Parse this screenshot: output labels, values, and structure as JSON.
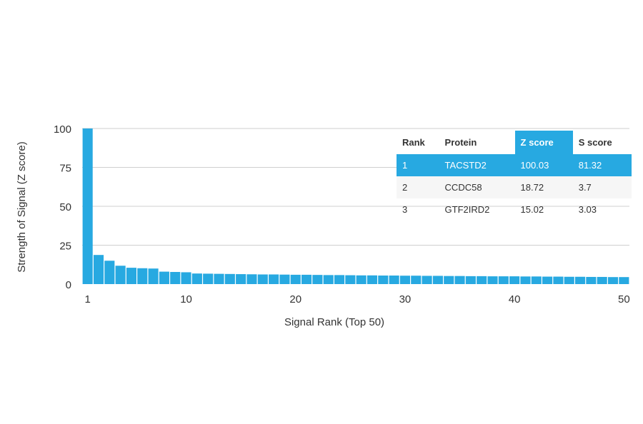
{
  "chart_data": {
    "type": "bar",
    "xlabel": "Signal Rank (Top 50)",
    "ylabel": "Strength of Signal (Z score)",
    "ylim": [
      0,
      100
    ],
    "yticks": [
      0,
      25,
      50,
      75,
      100
    ],
    "xticks": [
      1,
      10,
      20,
      30,
      40,
      50
    ],
    "grid": true,
    "bar_color": "#27a9e1",
    "values": [
      100.03,
      18.72,
      15.02,
      11.8,
      10.5,
      10.2,
      10,
      8,
      7.8,
      7.6,
      6.8,
      6.7,
      6.6,
      6.5,
      6.4,
      6.3,
      6.2,
      6.2,
      6.1,
      6.0,
      6.0,
      5.9,
      5.8,
      5.8,
      5.7,
      5.6,
      5.6,
      5.5,
      5.5,
      5.4,
      5.4,
      5.3,
      5.3,
      5.2,
      5.2,
      5.1,
      5.1,
      5.0,
      5.0,
      5.0,
      4.9,
      4.9,
      4.8,
      4.8,
      4.7,
      4.7,
      4.6,
      4.6,
      4.5,
      4.5
    ]
  },
  "table": {
    "headers": [
      "Rank",
      "Protein",
      "Z score",
      "S score"
    ],
    "rows": [
      [
        "1",
        "TACSTD2",
        "100.03",
        "81.32"
      ],
      [
        "2",
        "CCDC58",
        "18.72",
        "3.7"
      ],
      [
        "3",
        "GTF2IRD2",
        "15.02",
        "3.03"
      ]
    ]
  }
}
